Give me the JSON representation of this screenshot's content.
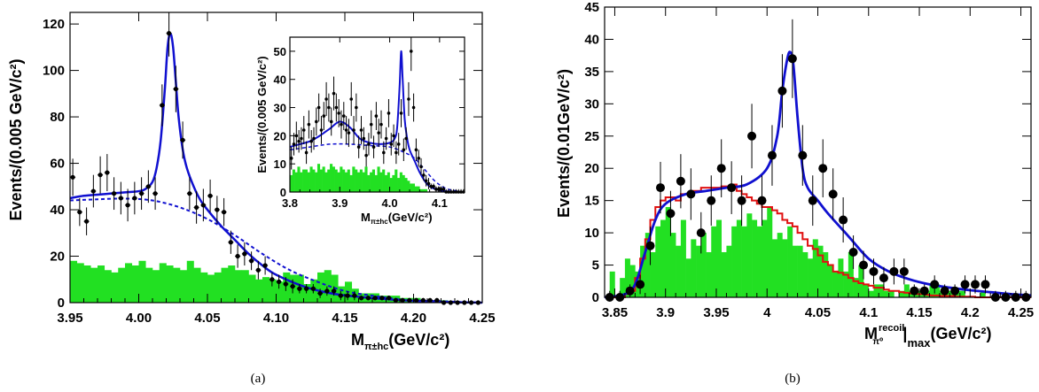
{
  "chart_data": [
    {
      "id": "a",
      "type": "scatter",
      "caption": "(a)",
      "xlabel": "M",
      "xlabel_sub": "π±hc",
      "xlabel_unit": "(GeV/c²)",
      "ylabel": "Events/(0.005 GeV/c²)",
      "xlim": [
        3.95,
        4.25
      ],
      "ylim": [
        0,
        125
      ],
      "xticks": [
        3.95,
        4.0,
        4.05,
        4.1,
        4.15,
        4.2,
        4.25
      ],
      "xtick_labels": [
        "3.95",
        "4.00",
        "4.05",
        "4.10",
        "4.15",
        "4.20",
        "4.25"
      ],
      "yticks": [
        0,
        20,
        40,
        60,
        80,
        100,
        120
      ],
      "ytick_labels": [
        "0",
        "20",
        "40",
        "60",
        "80",
        "100",
        "120"
      ],
      "data_points": {
        "x": [
          3.952,
          3.957,
          3.962,
          3.967,
          3.972,
          3.977,
          3.982,
          3.987,
          3.992,
          3.997,
          4.002,
          4.007,
          4.012,
          4.017,
          4.022,
          4.027,
          4.032,
          4.037,
          4.042,
          4.047,
          4.052,
          4.057,
          4.062,
          4.067,
          4.072,
          4.077,
          4.082,
          4.087,
          4.092,
          4.097,
          4.102,
          4.107,
          4.112,
          4.117,
          4.122,
          4.127,
          4.132,
          4.137,
          4.142,
          4.147,
          4.152,
          4.157,
          4.162,
          4.167,
          4.172,
          4.177,
          4.182,
          4.187,
          4.192,
          4.197,
          4.202,
          4.207,
          4.212,
          4.217,
          4.222,
          4.227,
          4.232,
          4.237,
          4.242,
          4.247
        ],
        "y": [
          54,
          39,
          35,
          48,
          55,
          56,
          47,
          45,
          42,
          45,
          47,
          50,
          47,
          85,
          116,
          92,
          70,
          47,
          41,
          42,
          46,
          40,
          39,
          26,
          20,
          21,
          18,
          14,
          16,
          10,
          9,
          8,
          7,
          6,
          6,
          6,
          4,
          5,
          5,
          3,
          3,
          3,
          2,
          2,
          2,
          2,
          2,
          1,
          1,
          1,
          1,
          1,
          1,
          1,
          0,
          0,
          0,
          0,
          0,
          0
        ],
        "yerr": [
          8,
          6,
          6,
          7,
          8,
          8,
          7,
          7,
          7,
          7,
          7,
          7,
          7,
          9,
          10,
          10,
          8,
          7,
          7,
          7,
          7,
          6,
          6,
          5,
          5,
          5,
          4,
          4,
          4,
          3,
          3,
          3,
          3,
          2,
          2,
          2,
          2,
          2,
          2,
          2,
          2,
          2,
          1,
          1,
          1,
          1,
          1,
          1,
          1,
          1,
          1,
          1,
          1,
          1,
          1,
          1,
          1,
          1,
          1,
          1
        ]
      },
      "fit_total": {
        "name": "",
        "color": "#1010d0",
        "x": [
          3.95,
          3.96,
          3.97,
          3.98,
          3.99,
          4.0,
          4.005,
          4.01,
          4.013,
          4.016,
          4.019,
          4.021,
          4.023,
          4.025,
          4.027,
          4.029,
          4.032,
          4.035,
          4.04,
          4.045,
          4.05,
          4.06,
          4.07,
          4.08,
          4.09,
          4.1,
          4.12,
          4.14,
          4.16,
          4.18,
          4.2,
          4.22,
          4.25
        ],
        "y": [
          45,
          46,
          46.5,
          47,
          47.5,
          48,
          49,
          52,
          58,
          70,
          92,
          110,
          116,
          110,
          95,
          80,
          66,
          58,
          50,
          44,
          40,
          33,
          27,
          21,
          16,
          12,
          7,
          4,
          2.5,
          1.5,
          0.8,
          0.3,
          0
        ]
      },
      "fit_background": {
        "name": "",
        "color": "#1010d0",
        "style": "dashed",
        "x": [
          3.95,
          3.97,
          3.99,
          4.01,
          4.03,
          4.05,
          4.07,
          4.09,
          4.11,
          4.13,
          4.15,
          4.17,
          4.19,
          4.21,
          4.25
        ],
        "y": [
          44,
          44.5,
          44.8,
          44,
          41,
          36,
          29,
          21,
          14,
          9,
          5,
          3,
          1.5,
          0.8,
          0
        ]
      },
      "sideband_hist": {
        "name": "",
        "color": "#22e022",
        "edges_start": 3.95,
        "bin_width": 0.005,
        "values": [
          18,
          17,
          16,
          15,
          16,
          14,
          13,
          15,
          17,
          16,
          18,
          15,
          14,
          17,
          16,
          15,
          14,
          18,
          15,
          13,
          12,
          13,
          15,
          16,
          14,
          14,
          12,
          10,
          11,
          10,
          9,
          13,
          12,
          12,
          8,
          10,
          13,
          14,
          12,
          7,
          9,
          6,
          4,
          4,
          4,
          3,
          3,
          3,
          2,
          2,
          2,
          1,
          1,
          1,
          1,
          0,
          0,
          0,
          0,
          0
        ]
      },
      "inset": {
        "xlabel": "M",
        "xlabel_sub": "π±hc",
        "xlabel_unit": "(GeV/c²)",
        "ylabel": "Events/(0.005 GeV/c²)",
        "xlim": [
          3.8,
          4.15
        ],
        "ylim": [
          0,
          55
        ],
        "xticks": [
          3.8,
          3.9,
          4.0,
          4.1
        ],
        "xtick_labels": [
          "3.8",
          "3.9",
          "4.0",
          "4.1"
        ],
        "yticks": [
          0,
          10,
          20,
          30,
          40,
          50
        ],
        "ytick_labels": [
          "0",
          "10",
          "20",
          "30",
          "40",
          "50"
        ],
        "data_points": {
          "x": [
            3.803,
            3.808,
            3.813,
            3.818,
            3.823,
            3.828,
            3.833,
            3.838,
            3.843,
            3.848,
            3.853,
            3.858,
            3.863,
            3.868,
            3.873,
            3.878,
            3.883,
            3.888,
            3.893,
            3.898,
            3.903,
            3.908,
            3.913,
            3.918,
            3.923,
            3.928,
            3.933,
            3.938,
            3.943,
            3.948,
            3.953,
            3.958,
            3.963,
            3.968,
            3.973,
            3.978,
            3.983,
            3.988,
            3.993,
            3.998,
            4.003,
            4.008,
            4.013,
            4.018,
            4.023,
            4.028,
            4.033,
            4.038,
            4.043,
            4.048,
            4.053,
            4.058,
            4.063,
            4.068,
            4.073,
            4.078,
            4.083,
            4.088,
            4.093,
            4.098,
            4.103,
            4.108,
            4.113,
            4.118,
            4.123,
            4.128,
            4.133,
            4.138,
            4.143,
            4.148
          ],
          "y": [
            12,
            17,
            20,
            18,
            19,
            22,
            14,
            24,
            18,
            19,
            25,
            30,
            22,
            27,
            33,
            30,
            25,
            35,
            30,
            28,
            24,
            27,
            22,
            21,
            33,
            22,
            30,
            16,
            22,
            19,
            13,
            17,
            24,
            16,
            27,
            21,
            24,
            14,
            19,
            28,
            17,
            20,
            14,
            17,
            28,
            15,
            19,
            33,
            50,
            30,
            15,
            12,
            9,
            6,
            4,
            3,
            2,
            2,
            1,
            1,
            1,
            1,
            0,
            0,
            0,
            0,
            0,
            0,
            0,
            0
          ],
          "yerr": [
            4,
            4,
            5,
            4,
            4,
            5,
            4,
            5,
            4,
            4,
            5,
            5,
            5,
            5,
            6,
            5,
            5,
            6,
            5,
            5,
            5,
            5,
            5,
            5,
            6,
            5,
            5,
            4,
            5,
            4,
            4,
            4,
            5,
            4,
            5,
            5,
            5,
            4,
            4,
            5,
            4,
            4,
            4,
            4,
            5,
            4,
            4,
            6,
            7,
            5,
            4,
            3,
            3,
            2,
            2,
            2,
            1,
            1,
            1,
            1,
            1,
            1,
            1,
            1,
            1,
            1,
            1,
            1,
            1,
            1
          ]
        },
        "fit_total": {
          "x": [
            3.8,
            3.82,
            3.84,
            3.86,
            3.88,
            3.9,
            3.92,
            3.94,
            3.96,
            3.98,
            4.0,
            4.01,
            4.015,
            4.02,
            4.023,
            4.026,
            4.03,
            4.035,
            4.04,
            4.05,
            4.06,
            4.07,
            4.08,
            4.1,
            4.12,
            4.15
          ],
          "y": [
            16,
            17,
            18,
            20,
            22.5,
            25,
            23,
            19,
            17.5,
            17,
            17.5,
            19,
            23,
            38,
            50,
            40,
            26,
            19,
            15,
            11,
            7,
            4,
            2,
            0.6,
            0.2,
            0
          ]
        },
        "fit_background": {
          "x": [
            3.8,
            3.84,
            3.88,
            3.92,
            3.96,
            4.0,
            4.03,
            4.05,
            4.07,
            4.09,
            4.11,
            4.13,
            4.15
          ],
          "y": [
            15,
            16,
            17,
            17,
            16.5,
            16,
            14,
            12,
            8,
            4,
            1.5,
            0.5,
            0
          ]
        },
        "sideband_hist": {
          "edges_start": 3.8,
          "bin_width": 0.005,
          "values": [
            6,
            8,
            7,
            9,
            7,
            8,
            8,
            7,
            9,
            8,
            7,
            10,
            8,
            9,
            7,
            8,
            10,
            9,
            8,
            7,
            9,
            8,
            7,
            8,
            6,
            9,
            8,
            7,
            8,
            7,
            9,
            6,
            7,
            8,
            6,
            9,
            7,
            8,
            6,
            7,
            5,
            6,
            8,
            5,
            7,
            6,
            5,
            4,
            3,
            3,
            2,
            2,
            1,
            1,
            1,
            0,
            0,
            0,
            0,
            0,
            0,
            0,
            0,
            0,
            0,
            0,
            0,
            0,
            0,
            0
          ]
        }
      }
    },
    {
      "id": "b",
      "type": "scatter",
      "caption": "(b)",
      "xlabel": "M",
      "xlabel_sup": "recoil",
      "xlabel_sub": "π⁰",
      "xlabel_suffix": "|",
      "xlabel_sub2": "max",
      "xlabel_unit": "(GeV/c²)",
      "ylabel": "Events/(0.01GeV/c²)",
      "xlim": [
        3.84,
        4.26
      ],
      "ylim": [
        0,
        45
      ],
      "xticks": [
        3.85,
        3.9,
        3.95,
        4.0,
        4.05,
        4.1,
        4.15,
        4.2,
        4.25
      ],
      "xtick_labels": [
        "3.85",
        "3.9",
        "3.95",
        "4",
        "4.05",
        "4.1",
        "4.15",
        "4.2",
        "4.25"
      ],
      "yticks": [
        0,
        5,
        10,
        15,
        20,
        25,
        30,
        35,
        40,
        45
      ],
      "ytick_labels": [
        "0",
        "5",
        "10",
        "15",
        "20",
        "25",
        "30",
        "35",
        "40",
        "45"
      ],
      "data_points": {
        "x": [
          3.845,
          3.855,
          3.865,
          3.875,
          3.885,
          3.895,
          3.905,
          3.915,
          3.925,
          3.935,
          3.945,
          3.955,
          3.965,
          3.975,
          3.985,
          3.995,
          4.005,
          4.015,
          4.025,
          4.035,
          4.045,
          4.055,
          4.065,
          4.075,
          4.085,
          4.095,
          4.105,
          4.115,
          4.125,
          4.135,
          4.145,
          4.155,
          4.165,
          4.175,
          4.185,
          4.195,
          4.205,
          4.215,
          4.225,
          4.235,
          4.245,
          4.255
        ],
        "y": [
          0,
          0,
          1,
          2,
          8,
          17,
          13,
          18,
          16,
          10,
          15,
          20,
          17,
          15,
          25,
          15,
          22,
          32,
          37,
          22,
          15,
          20,
          16,
          12,
          7,
          5,
          4,
          3,
          4,
          4,
          1,
          1,
          2,
          1,
          1,
          2,
          2,
          2,
          0,
          0,
          0,
          0
        ],
        "yerr": [
          1,
          1,
          1,
          1.5,
          3,
          4,
          3.5,
          4.2,
          4,
          3.2,
          3.9,
          4.5,
          4.1,
          3.9,
          5,
          3.9,
          4.7,
          5.7,
          6.1,
          4.7,
          3.9,
          4.5,
          4,
          3.5,
          2.6,
          2.2,
          2,
          1.7,
          2,
          2,
          1,
          1,
          1.4,
          1,
          1,
          1.4,
          1.4,
          1.4,
          1,
          1,
          1,
          1
        ]
      },
      "fit_total": {
        "name": "",
        "color": "#1010d0",
        "x": [
          3.84,
          3.86,
          3.87,
          3.88,
          3.89,
          3.9,
          3.92,
          3.94,
          3.96,
          3.98,
          4.0,
          4.01,
          4.015,
          4.02,
          4.023,
          4.026,
          4.03,
          4.035,
          4.04,
          4.05,
          4.06,
          4.08,
          4.1,
          4.12,
          4.14,
          4.16,
          4.18,
          4.2,
          4.22,
          4.24,
          4.26
        ],
        "y": [
          0,
          0.5,
          2,
          7,
          12,
          14.5,
          16,
          16.5,
          17,
          17.5,
          20,
          25,
          32,
          37,
          38,
          36,
          28,
          20,
          17,
          15,
          13,
          9.5,
          6,
          4,
          2.8,
          2,
          1.5,
          1.1,
          0.8,
          0.5,
          0.3
        ]
      },
      "mc_hist": {
        "name": "",
        "color": "#e01010",
        "edges_start": 3.84,
        "bin_width": 0.005,
        "values": [
          0,
          0,
          0,
          0,
          0.5,
          1,
          3,
          6,
          9,
          12,
          14,
          15,
          15.5,
          15.5,
          15,
          16,
          16,
          16.5,
          16.5,
          17,
          17,
          17,
          17,
          17.2,
          17.2,
          17.5,
          16.5,
          16,
          15.5,
          15,
          14.5,
          14,
          14,
          13.5,
          13,
          12,
          11.5,
          11,
          10,
          9,
          8,
          7.5,
          6.5,
          5.5,
          5,
          4,
          3.8,
          3.5,
          3,
          2.5,
          2.2,
          2,
          1.8,
          1.5,
          1.5,
          1.2,
          1,
          1,
          0.8,
          0.7,
          0.6,
          0.5,
          0.5,
          0.4,
          0.3,
          0.3,
          0.2,
          0.2,
          0.2,
          0.1,
          0.1,
          0.1,
          0.1,
          0,
          0,
          0,
          0,
          0,
          0,
          0,
          0,
          0,
          0,
          0
        ]
      },
      "sideband_hist": {
        "name": "",
        "color": "#22e022",
        "edges_start": 3.84,
        "bin_width": 0.005,
        "values": [
          0,
          4,
          0,
          3,
          6,
          5,
          4,
          8,
          10,
          7,
          11,
          12,
          14,
          10,
          8,
          12,
          6,
          9,
          8,
          10,
          7,
          11,
          12,
          7,
          8,
          11,
          12,
          11,
          13,
          12,
          11,
          12,
          14,
          9,
          10,
          9,
          11,
          8,
          8,
          7,
          6,
          9,
          8,
          7,
          5,
          4,
          6,
          4,
          7,
          3,
          5,
          2,
          1,
          2,
          2,
          1,
          1,
          0,
          1,
          2,
          1,
          1,
          1,
          1,
          2,
          2,
          1,
          1,
          1,
          1,
          1,
          0,
          0,
          0,
          1,
          0,
          0,
          0,
          0,
          0,
          0,
          0,
          0,
          0
        ]
      }
    }
  ]
}
